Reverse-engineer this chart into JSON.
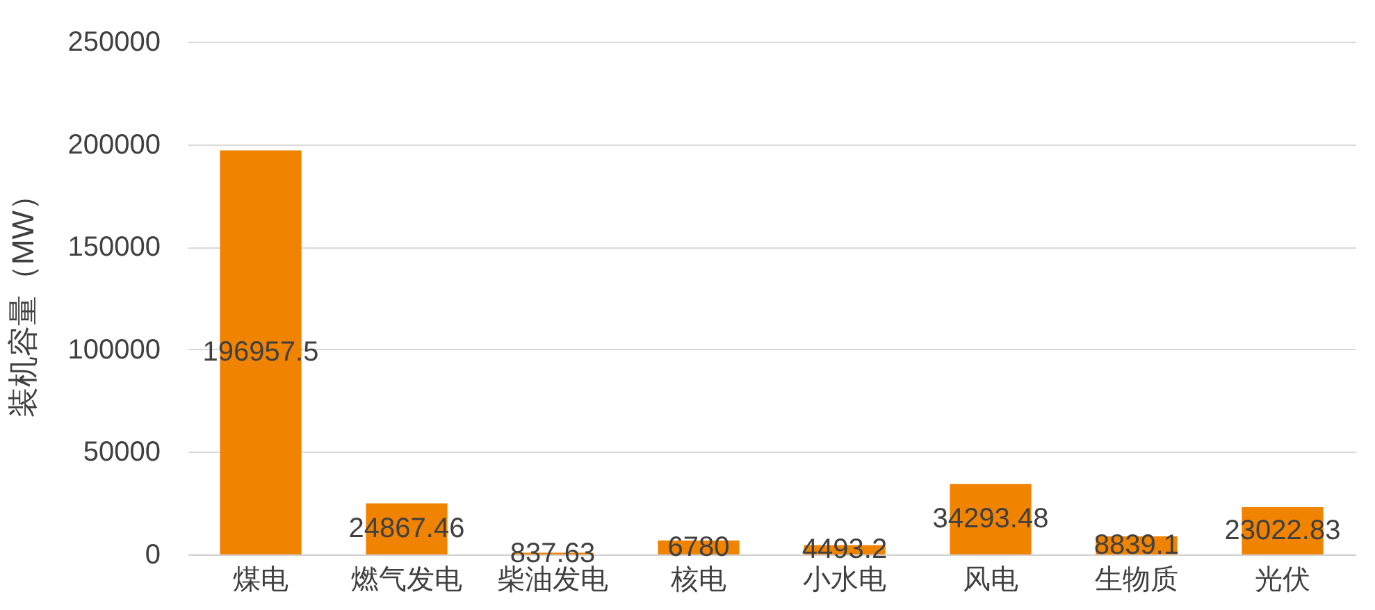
{
  "chart_data": {
    "type": "bar",
    "ylabel": "装机容量（MW）",
    "categories": [
      "煤电",
      "燃气发电",
      "柴油发电",
      "核电",
      "小水电",
      "风电",
      "生物质",
      "光伏"
    ],
    "values": [
      196957.5,
      24867.46,
      837.63,
      6780,
      4493.2,
      34293.48,
      8839.1,
      23022.83
    ],
    "color": "#f08300",
    "ylim": [
      0,
      250000
    ],
    "yticks": [
      0,
      50000,
      100000,
      150000,
      200000,
      250000
    ],
    "grid": "y",
    "data_labels": true
  }
}
